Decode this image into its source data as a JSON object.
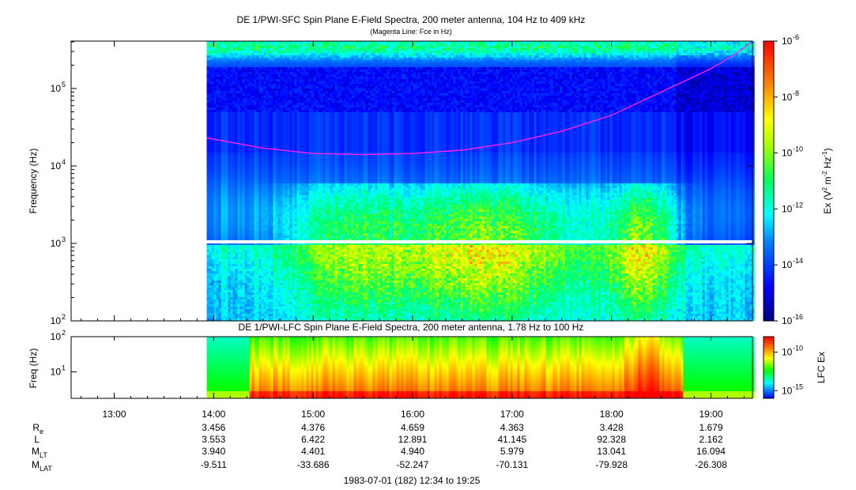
{
  "chart_data": [
    {
      "type": "heatmap",
      "title": "DE 1/PWI-SFC  Spin Plane E-Field Spectra, 200 meter antenna, 104 Hz to 409 kHz",
      "subtitle": "(Magenta Line: Fce in Hz)",
      "ylabel": "Frequency (Hz)",
      "yscale": "log",
      "ylim": [
        100,
        409000
      ],
      "yticks": [
        {
          "value": 100,
          "label": "10",
          "exp": "2"
        },
        {
          "value": 1000,
          "label": "10",
          "exp": "3"
        },
        {
          "value": 10000,
          "label": "10",
          "exp": "4"
        },
        {
          "value": 100000,
          "label": "10",
          "exp": "5"
        }
      ],
      "colorbar": {
        "label": "Ex (V",
        "label_sup1": "2",
        "label_mid": " m",
        "label_sup2": "-2",
        "label_mid2": " Hz",
        "label_sup3": "-1",
        "label_end": ")",
        "range": [
          1e-16,
          1e-06
        ],
        "ticks": [
          {
            "value": 1e-06,
            "label": "10",
            "exp": "-6"
          },
          {
            "value": 1e-08,
            "label": "10",
            "exp": "-8"
          },
          {
            "value": 1e-10,
            "label": "10",
            "exp": "-10"
          },
          {
            "value": 1e-12,
            "label": "10",
            "exp": "-12"
          },
          {
            "value": 1e-14,
            "label": "10",
            "exp": "-14"
          },
          {
            "value": 1e-16,
            "label": "10",
            "exp": "-16"
          }
        ]
      },
      "data_start_hour": 13.93,
      "gap_hz": [
        1000,
        1100
      ],
      "fce_line": {
        "color": "#ff22ff",
        "x_hours": [
          13.93,
          14.5,
          15.0,
          15.5,
          16.0,
          16.5,
          17.0,
          17.5,
          18.0,
          18.5,
          19.0,
          19.25,
          19.42
        ],
        "y_hz": [
          23000,
          17000,
          14500,
          14000,
          14500,
          16000,
          20000,
          28000,
          45000,
          90000,
          180000,
          280000,
          409000
        ]
      }
    },
    {
      "type": "heatmap",
      "title": "DE 1/PWI-LFC  Spin Plane E-Field Spectra, 200 meter antenna, 1.78 Hz to 100 Hz",
      "ylabel": "Freq (Hz)",
      "yscale": "log",
      "ylim": [
        1.78,
        100
      ],
      "yticks": [
        {
          "value": 10,
          "label": "10",
          "exp": "1"
        },
        {
          "value": 100,
          "label": "10",
          "exp": "2"
        }
      ],
      "colorbar": {
        "label": "LFC Ex",
        "range": [
          1e-16,
          1e-08
        ],
        "ticks": [
          {
            "value": 1e-10,
            "label": "10",
            "exp": "-10"
          },
          {
            "value": 1e-15,
            "label": "10",
            "exp": "-15"
          }
        ]
      },
      "data_start_hour": 13.93
    }
  ],
  "time_axis": {
    "range_hours": [
      12.567,
      19.417
    ],
    "ticks": [
      {
        "hour": 13,
        "label": "13:00"
      },
      {
        "hour": 14,
        "label": "14:00"
      },
      {
        "hour": 15,
        "label": "15:00"
      },
      {
        "hour": 16,
        "label": "16:00"
      },
      {
        "hour": 17,
        "label": "17:00"
      },
      {
        "hour": 18,
        "label": "18:00"
      },
      {
        "hour": 19,
        "label": "19:00"
      }
    ]
  },
  "ephemeris": {
    "rows": [
      {
        "label": "R",
        "sub": "e",
        "values": [
          "3.456",
          "4.376",
          "4.659",
          "4.363",
          "3.428",
          "1.679"
        ]
      },
      {
        "label": "L",
        "sub": "",
        "values": [
          "3.553",
          "6.422",
          "12.891",
          "41.145",
          "92.328",
          "2.162"
        ]
      },
      {
        "label": "M",
        "sub": "LT",
        "values": [
          "3.940",
          "4.401",
          "4.940",
          "5.979",
          "13.041",
          "16.094"
        ]
      },
      {
        "label": "M",
        "sub": "LAT",
        "values": [
          "-9.511",
          "-33.686",
          "-52.247",
          "-70.131",
          "-79.928",
          "-26.308"
        ]
      }
    ],
    "value_hours": [
      14,
      15,
      16,
      17,
      18,
      19
    ]
  },
  "footer": "1983-07-01 (182) 12:34 to 19:25"
}
